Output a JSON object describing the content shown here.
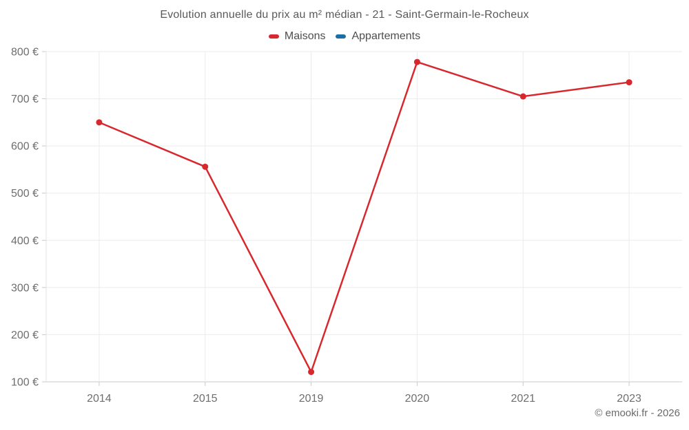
{
  "title": "Evolution annuelle du prix au m² médian - 21 - Saint-Germain-le-Rocheux",
  "footer": "© emooki.fr - 2026",
  "colors": {
    "maisons": "#d7282e",
    "appartements": "#1c6fa6",
    "gridline": "#ebebeb",
    "axis_line": "#c9c9c9",
    "left_axis_line": "#e3e3e3",
    "axis_text": "#6e6e6e"
  },
  "chart_data": {
    "type": "line",
    "title": "Evolution annuelle du prix au m² médian - 21 - Saint-Germain-le-Rocheux",
    "categories": [
      "2014",
      "2015",
      "2019",
      "2020",
      "2021",
      "2023"
    ],
    "series": [
      {
        "name": "Maisons",
        "color": "#d7282e",
        "values": [
          650,
          556,
          121,
          778,
          705,
          735
        ]
      },
      {
        "name": "Appartements",
        "color": "#1c6fa6",
        "values": []
      }
    ],
    "xlabel": "",
    "ylabel": "",
    "ylim": [
      100,
      800
    ],
    "ytick_step": 100,
    "ytick_format": "{value} €",
    "grid": true,
    "legend_position": "top"
  }
}
